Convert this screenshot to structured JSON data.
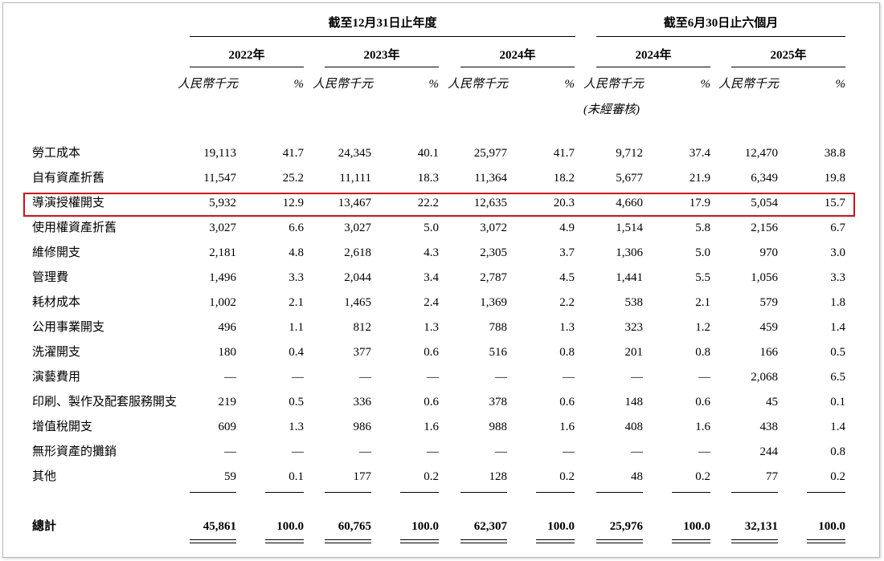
{
  "header": {
    "group_annual": "截至12月31日止年度",
    "group_half": "截至6月30日止六個月",
    "years": [
      "2022年",
      "2023年",
      "2024年",
      "2024年",
      "2025年"
    ],
    "unit_label": "人民幣千元",
    "pct_label": "%",
    "unaudited": "(未經審核)"
  },
  "rows": [
    {
      "label": "勞工成本",
      "cells": [
        "19,113",
        "41.7",
        "24,345",
        "40.1",
        "25,977",
        "41.7",
        "9,712",
        "37.4",
        "12,470",
        "38.8"
      ]
    },
    {
      "label": "自有資產折舊",
      "cells": [
        "11,547",
        "25.2",
        "11,111",
        "18.3",
        "11,364",
        "18.2",
        "5,677",
        "21.9",
        "6,349",
        "19.8"
      ]
    },
    {
      "label": "導演授權開支",
      "cells": [
        "5,932",
        "12.9",
        "13,467",
        "22.2",
        "12,635",
        "20.3",
        "4,660",
        "17.9",
        "5,054",
        "15.7"
      ]
    },
    {
      "label": "使用權資產折舊",
      "cells": [
        "3,027",
        "6.6",
        "3,027",
        "5.0",
        "3,072",
        "4.9",
        "1,514",
        "5.8",
        "2,156",
        "6.7"
      ]
    },
    {
      "label": "維修開支",
      "cells": [
        "2,181",
        "4.8",
        "2,618",
        "4.3",
        "2,305",
        "3.7",
        "1,306",
        "5.0",
        "970",
        "3.0"
      ]
    },
    {
      "label": "管理費",
      "cells": [
        "1,496",
        "3.3",
        "2,044",
        "3.4",
        "2,787",
        "4.5",
        "1,441",
        "5.5",
        "1,056",
        "3.3"
      ]
    },
    {
      "label": "耗材成本",
      "cells": [
        "1,002",
        "2.1",
        "1,465",
        "2.4",
        "1,369",
        "2.2",
        "538",
        "2.1",
        "579",
        "1.8"
      ]
    },
    {
      "label": "公用事業開支",
      "cells": [
        "496",
        "1.1",
        "812",
        "1.3",
        "788",
        "1.3",
        "323",
        "1.2",
        "459",
        "1.4"
      ]
    },
    {
      "label": "洗濯開支",
      "cells": [
        "180",
        "0.4",
        "377",
        "0.6",
        "516",
        "0.8",
        "201",
        "0.8",
        "166",
        "0.5"
      ]
    },
    {
      "label": "演藝費用",
      "cells": [
        "—",
        "—",
        "—",
        "—",
        "—",
        "—",
        "—",
        "—",
        "2,068",
        "6.5"
      ]
    },
    {
      "label": "印刷、製作及配套服務開支",
      "cells": [
        "219",
        "0.5",
        "336",
        "0.6",
        "378",
        "0.6",
        "148",
        "0.6",
        "45",
        "0.1"
      ]
    },
    {
      "label": "增值稅開支",
      "cells": [
        "609",
        "1.3",
        "986",
        "1.6",
        "988",
        "1.6",
        "408",
        "1.6",
        "438",
        "1.4"
      ]
    },
    {
      "label": "無形資產的攤銷",
      "cells": [
        "—",
        "—",
        "—",
        "—",
        "—",
        "—",
        "—",
        "—",
        "244",
        "0.8"
      ]
    },
    {
      "label": "其他",
      "cells": [
        "59",
        "0.1",
        "177",
        "0.2",
        "128",
        "0.2",
        "48",
        "0.2",
        "77",
        "0.2"
      ]
    }
  ],
  "total": {
    "label": "總計",
    "cells": [
      "45,861",
      "100.0",
      "60,765",
      "100.0",
      "62,307",
      "100.0",
      "25,976",
      "100.0",
      "32,131",
      "100.0"
    ]
  },
  "highlight_color": "#d0101b"
}
